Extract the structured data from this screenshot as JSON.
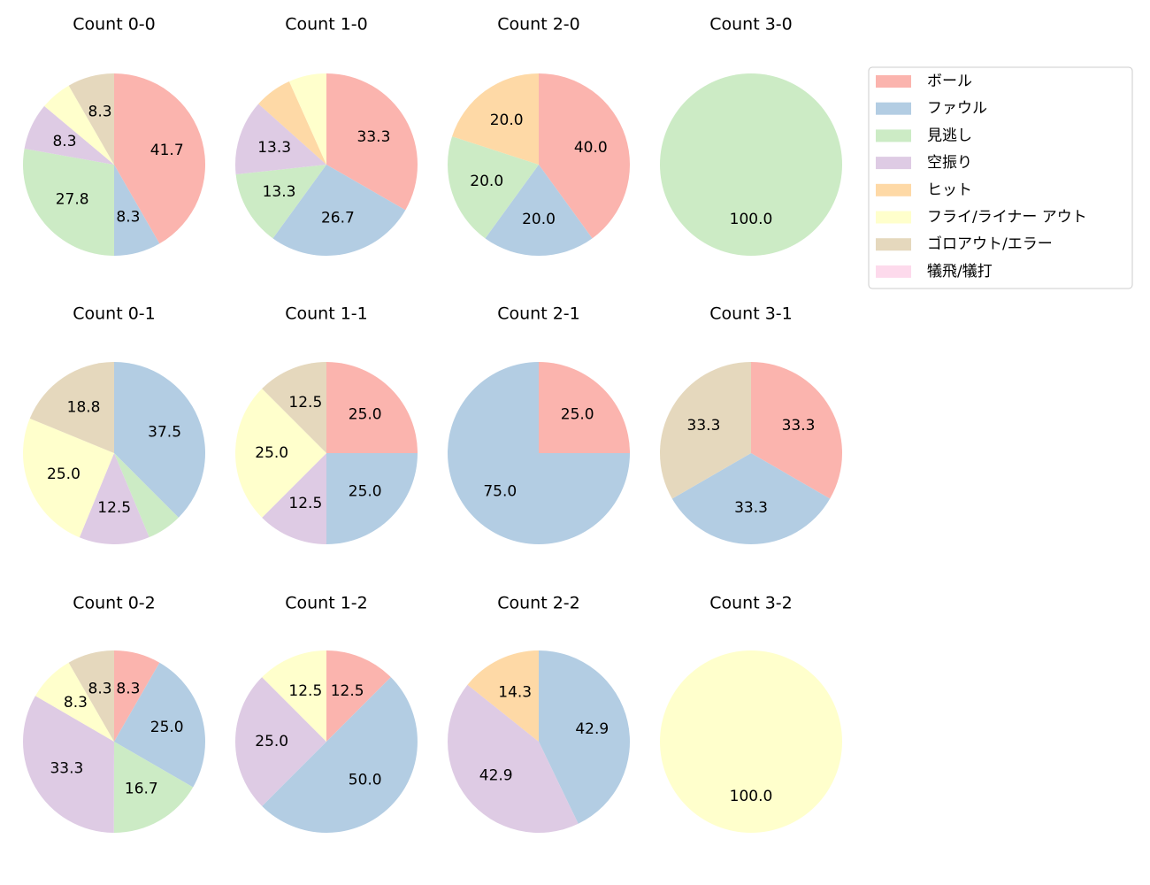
{
  "legend": {
    "labels": [
      "ボール",
      "ファウル",
      "見逃し",
      "空振り",
      "ヒット",
      "フライ/ライナー アウト",
      "ゴロアウト/エラー",
      "犠飛/犠打"
    ],
    "colors": [
      "#fbb4ae",
      "#b3cde3",
      "#ccebc5",
      "#decbe4",
      "#fed9a6",
      "#ffffcc",
      "#e5d8bd",
      "#fddaec"
    ]
  },
  "chart_data": [
    {
      "type": "pie",
      "title": "Count 0-0",
      "values": [
        41.7,
        8.3,
        27.8,
        8.3,
        0,
        5.6,
        8.3,
        0
      ],
      "value_labels": [
        "41.7",
        "8.3",
        "27.8",
        "8.3",
        null,
        null,
        "8.3",
        null
      ]
    },
    {
      "type": "pie",
      "title": "Count 1-0",
      "values": [
        33.3,
        26.7,
        13.3,
        13.3,
        6.7,
        6.7,
        0,
        0
      ],
      "value_labels": [
        "33.3",
        "26.7",
        "13.3",
        "13.3",
        null,
        null,
        null,
        null
      ]
    },
    {
      "type": "pie",
      "title": "Count 2-0",
      "values": [
        40.0,
        20.0,
        20.0,
        0,
        20.0,
        0,
        0,
        0
      ],
      "value_labels": [
        "40.0",
        "20.0",
        "20.0",
        null,
        "20.0",
        null,
        null,
        null
      ]
    },
    {
      "type": "pie",
      "title": "Count 3-0",
      "values": [
        0,
        0,
        100,
        0,
        0,
        0,
        0,
        0
      ],
      "value_labels": [
        null,
        null,
        "100.0",
        null,
        null,
        null,
        null,
        null
      ]
    },
    {
      "type": "pie",
      "title": "Count 0-1",
      "values": [
        0,
        37.5,
        6.2,
        12.5,
        0,
        25.0,
        18.8,
        0
      ],
      "value_labels": [
        null,
        "37.5",
        null,
        "12.5",
        null,
        "25.0",
        "18.8",
        null
      ]
    },
    {
      "type": "pie",
      "title": "Count 1-1",
      "values": [
        25.0,
        25.0,
        0,
        12.5,
        0,
        25.0,
        12.5,
        0
      ],
      "value_labels": [
        "25.0",
        "25.0",
        null,
        "12.5",
        null,
        "25.0",
        "12.5",
        null
      ]
    },
    {
      "type": "pie",
      "title": "Count 2-1",
      "values": [
        25.0,
        75.0,
        0,
        0,
        0,
        0,
        0,
        0
      ],
      "value_labels": [
        "25.0",
        "75.0",
        null,
        null,
        null,
        null,
        null,
        null
      ]
    },
    {
      "type": "pie",
      "title": "Count 3-1",
      "values": [
        33.3,
        33.3,
        0,
        0,
        0,
        0,
        33.3,
        0
      ],
      "value_labels": [
        "33.3",
        "33.3",
        null,
        null,
        null,
        null,
        "33.3",
        null
      ]
    },
    {
      "type": "pie",
      "title": "Count 0-2",
      "values": [
        8.3,
        25.0,
        16.7,
        33.3,
        0,
        8.3,
        8.3,
        0
      ],
      "value_labels": [
        "8.3",
        "25.0",
        "16.7",
        "33.3",
        null,
        "8.3",
        "8.3",
        null
      ]
    },
    {
      "type": "pie",
      "title": "Count 1-2",
      "values": [
        12.5,
        50.0,
        0,
        25.0,
        0,
        12.5,
        0,
        0
      ],
      "value_labels": [
        "12.5",
        "50.0",
        null,
        "25.0",
        null,
        "12.5",
        null,
        null
      ]
    },
    {
      "type": "pie",
      "title": "Count 2-2",
      "values": [
        0,
        42.9,
        0,
        42.9,
        14.3,
        0,
        0,
        0
      ],
      "value_labels": [
        null,
        "42.9",
        null,
        "42.9",
        "14.3",
        null,
        null,
        null
      ]
    },
    {
      "type": "pie",
      "title": "Count 3-2",
      "values": [
        0,
        0,
        0,
        0,
        0,
        100,
        0,
        0
      ],
      "value_labels": [
        null,
        null,
        null,
        null,
        null,
        "100.0",
        null,
        null
      ]
    }
  ]
}
